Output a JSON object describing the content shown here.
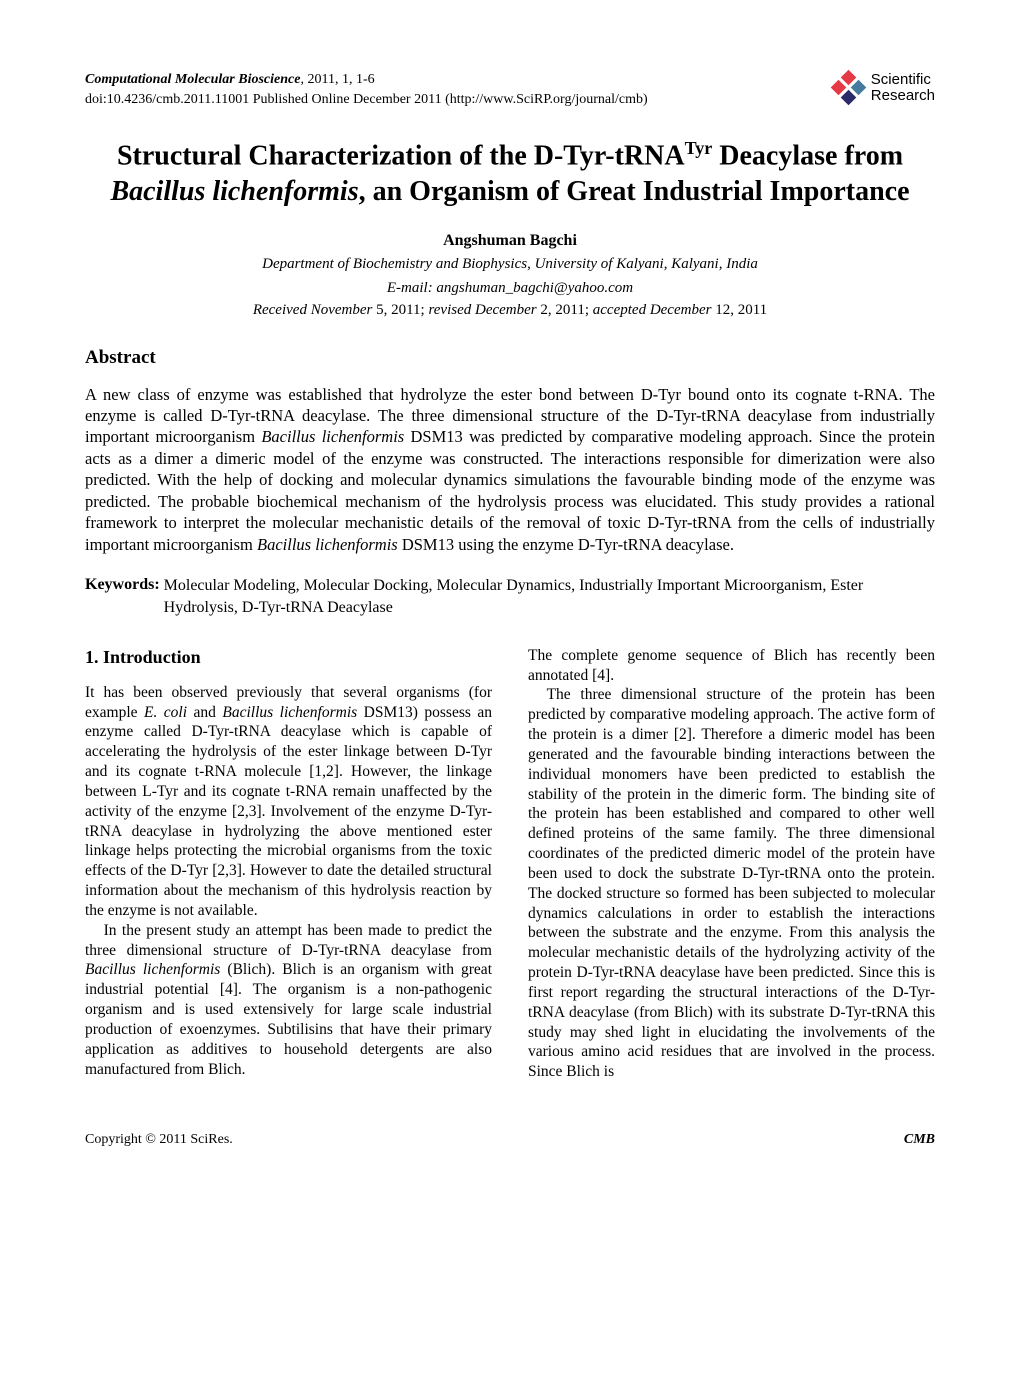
{
  "header": {
    "journal_name": "Computational Molecular Bioscience",
    "journal_ref": ", 2011, 1, 1-6",
    "doi_line": "doi:10.4236/cmb.2011.11001 Published Online December 2011 (http://www.SciRP.org/journal/cmb)",
    "logo_text_line1": "Scientific",
    "logo_text_line2": "Research",
    "logo_colors": {
      "d1": "#e63946",
      "d2": "#e63946",
      "d3": "#457b9d",
      "d4": "#2a2a6a"
    }
  },
  "title": {
    "line": "Structural Characterization of the D-Tyr-tRNA",
    "sup": "Tyr",
    "line2_part1": " Deacylase from ",
    "line2_italic": "Bacillus lichenformis",
    "line2_part2": ", an Organism of Great Industrial Importance"
  },
  "author": "Angshuman Bagchi",
  "affiliation": "Department of Biochemistry and Biophysics, University of Kalyani, Kalyani, India",
  "email_label": "E-mail",
  "email": ": angshuman_bagchi@yahoo.com",
  "dates": {
    "received_label": "Received November",
    "received_date": " 5, 2011; ",
    "revised_label": "revised December",
    "revised_date": " 2, 2011; ",
    "accepted_label": "accepted December",
    "accepted_date": " 12, 2011"
  },
  "abstract": {
    "heading": "Abstract",
    "p1a": "A new class of enzyme was established that hydrolyze the ester bond between D-Tyr bound onto its cognate t-RNA. The enzyme is called D-Tyr-tRNA deacylase. The three dimensional structure of the D-Tyr-tRNA deacylase from industrially important microorganism ",
    "p1b_italic": "Bacillus lichenformis",
    "p1c": " DSM13 was predicted by comparative modeling approach. Since the protein acts as a dimer a dimeric model of the enzyme was constructed. The interactions responsible for dimerization were also predicted. With the help of docking and molecular dynamics simulations the favourable binding mode of the enzyme was predicted. The probable biochemical mechanism of the hydrolysis process was elucidated. This study provides a rational framework to interpret the molecular mechanistic details of the removal of toxic D-Tyr-tRNA from the cells of industrially important microorganism ",
    "p1d_italic": "Bacillus lichenformis",
    "p1e": " DSM13 using the enzyme D-Tyr-tRNA deacylase."
  },
  "keywords": {
    "label": "Keywords:",
    "text": "Molecular Modeling, Molecular Docking, Molecular Dynamics, Industrially Important Microorganism, Ester Hydrolysis, D-Tyr-tRNA Deacylase"
  },
  "intro_heading": "1. Introduction",
  "col1": {
    "p1a": "It has been observed previously that several organisms (for example ",
    "p1b_italic": "E. coli",
    "p1c": " and ",
    "p1d_italic": "Bacillus lichenformis",
    "p1e": " DSM13) possess an enzyme called D-Tyr-tRNA deacylase which is capable of accelerating the hydrolysis of the ester linkage between D-Tyr and its cognate t-RNA molecule [1,2]. However, the linkage between L-Tyr and its cognate t-RNA remain unaffected by the activity of the enzyme [2,3]. Involvement of the enzyme D-Tyr-tRNA deacylase in hydrolyzing the above mentioned ester linkage helps protecting the microbial organisms from the toxic effects of the D-Tyr [2,3]. However to date the detailed structural information about the mechanism of this hydrolysis reaction by the enzyme is not available.",
    "p2a": "In the present study an attempt has been made to predict the three dimensional structure of D-Tyr-tRNA deacylase from ",
    "p2b_italic": "Bacillus lichenformis",
    "p2c": " (Blich). Blich is an organism with great industrial potential [4]. The organism is a non-pathogenic organism and is used extensively for large scale industrial production of exoenzymes. Subtilisins that have their primary application as additives to household detergents are also manufactured from Blich."
  },
  "col2": {
    "p1": "The complete genome sequence of Blich has recently been annotated [4].",
    "p2": "The three dimensional structure of the protein has been predicted by comparative modeling approach. The active form of the protein is a dimer [2]. Therefore a dimeric model has been generated and the favourable binding interactions between the individual monomers have been predicted to establish the stability of the protein in the dimeric form. The binding site of the protein has been established and compared to other well defined proteins of the same family. The three dimensional coordinates of the predicted dimeric model of the protein have been used to dock the substrate D-Tyr-tRNA onto the protein. The docked structure so formed has been subjected to molecular dynamics calculations in order to establish the interactions between the substrate and the enzyme. From this analysis the molecular mechanistic details of the hydrolyzing activity of the protein D-Tyr-tRNA deacylase have been predicted. Since this is first report regarding the structural interactions of the D-Tyr-tRNA deacylase (from Blich) with its substrate D-Tyr-tRNA this study may shed light in elucidating the involvements of the various amino acid residues that are involved in the process. Since Blich is"
  },
  "footer": {
    "left": "Copyright © 2011 SciRes.",
    "right": "CMB"
  }
}
